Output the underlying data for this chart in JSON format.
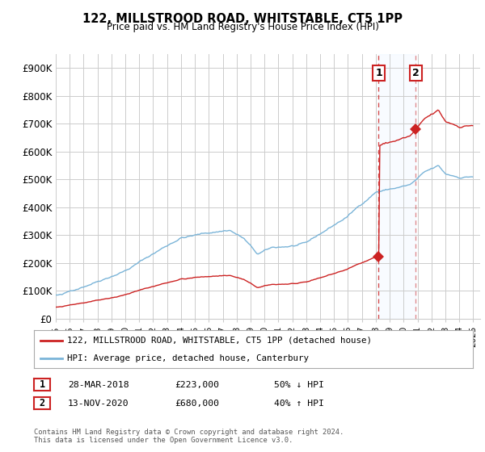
{
  "title": "122, MILLSTROOD ROAD, WHITSTABLE, CT5 1PP",
  "subtitle": "Price paid vs. HM Land Registry's House Price Index (HPI)",
  "ylim": [
    0,
    950000
  ],
  "yticks": [
    0,
    100000,
    200000,
    300000,
    400000,
    500000,
    600000,
    700000,
    800000,
    900000
  ],
  "ytick_labels": [
    "£0",
    "£100K",
    "£200K",
    "£300K",
    "£400K",
    "£500K",
    "£600K",
    "£700K",
    "£800K",
    "£900K"
  ],
  "hpi_color": "#7ab4d8",
  "price_color": "#cc2222",
  "sale1_year": 2018,
  "sale1_month": 3,
  "sale1_price": 223000,
  "sale2_year": 2020,
  "sale2_month": 11,
  "sale2_price": 680000,
  "legend_line1": "122, MILLSTROOD ROAD, WHITSTABLE, CT5 1PP (detached house)",
  "legend_line2": "HPI: Average price, detached house, Canterbury",
  "table_row1": [
    "1",
    "28-MAR-2018",
    "£223,000",
    "50% ↓ HPI"
  ],
  "table_row2": [
    "2",
    "13-NOV-2020",
    "£680,000",
    "40% ↑ HPI"
  ],
  "footnote": "Contains HM Land Registry data © Crown copyright and database right 2024.\nThis data is licensed under the Open Government Licence v3.0.",
  "background_color": "#ffffff",
  "grid_color": "#cccccc",
  "shading_color": "#ddeeff",
  "xlim_start": 1995.0,
  "xlim_end": 2025.5
}
